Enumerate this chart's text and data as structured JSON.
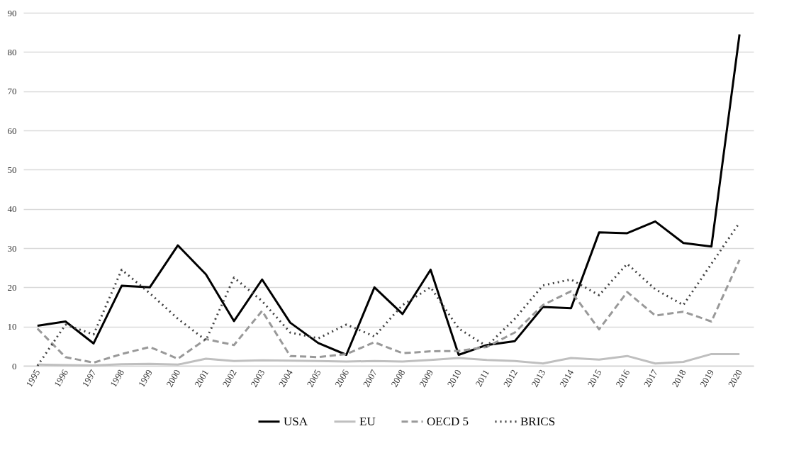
{
  "chart_data": {
    "type": "line",
    "categories": [
      "1995",
      "1996",
      "1997",
      "1998",
      "1999",
      "2000",
      "2001",
      "2002",
      "2003",
      "2004",
      "2005",
      "2006",
      "2007",
      "2008",
      "2009",
      "2010",
      "2011",
      "2012",
      "2013",
      "2014",
      "2015",
      "2016",
      "2017",
      "2018",
      "2019",
      "2020"
    ],
    "series": [
      {
        "name": "USA",
        "color": "#000000",
        "line_style": "solid",
        "values": [
          10.2,
          11.3,
          5.7,
          20.4,
          20,
          30.7,
          23.3,
          11.4,
          22,
          11,
          5.8,
          2.8,
          20,
          13.2,
          24.5,
          2.8,
          5.3,
          6.3,
          15,
          14.7,
          34,
          33.8,
          36.8,
          31.3,
          30.4,
          84.5
        ]
      },
      {
        "name": "EU",
        "color": "#bfbfbf",
        "line_style": "solid",
        "values": [
          0.3,
          0.2,
          0.1,
          0.4,
          0.5,
          0.3,
          1.8,
          1.2,
          1.4,
          1.3,
          1.2,
          1.1,
          1.2,
          1.1,
          1.5,
          2,
          1.5,
          1.2,
          0.6,
          2,
          1.6,
          2.5,
          0.6,
          1,
          3,
          3
        ]
      },
      {
        "name": "OECD 5",
        "color": "#999999",
        "line_style": "dashed",
        "values": [
          9.5,
          2.2,
          0.8,
          3,
          4.8,
          1.8,
          6.8,
          5.3,
          14,
          2.5,
          2.2,
          3,
          6,
          3.2,
          3.7,
          3.8,
          4.8,
          8.5,
          15.5,
          19,
          9.3,
          18.8,
          12.8,
          13.8,
          11.3,
          27
        ]
      },
      {
        "name": "BRICS",
        "color": "#404040",
        "line_style": "dotted",
        "values": [
          0,
          10.5,
          8,
          24.5,
          18.5,
          12,
          6.5,
          22.5,
          16.5,
          8.5,
          7,
          10.5,
          7.5,
          15.5,
          20,
          9.5,
          5,
          12,
          20.5,
          22,
          18,
          26,
          19.5,
          15.5,
          26,
          36.5
        ]
      }
    ],
    "ylim": [
      0,
      90
    ],
    "yticks": [
      0,
      10,
      20,
      30,
      40,
      50,
      60,
      70,
      80,
      90
    ],
    "grid": "y",
    "legend": "bottom"
  }
}
